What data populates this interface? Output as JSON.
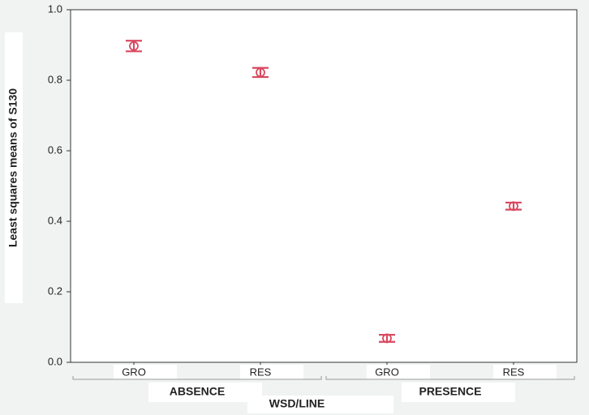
{
  "chart_data": {
    "type": "errorbar",
    "y_label": "Least squares means of S130",
    "x_label": "WSD/LINE",
    "categories": [
      "GRO",
      "RES",
      "GRO",
      "RES"
    ],
    "groups": [
      "ABSENCE",
      "PRESENCE"
    ],
    "values": [
      0.897,
      0.822,
      0.068,
      0.443
    ],
    "errors": [
      0.015,
      0.013,
      0.01,
      0.01
    ],
    "color": "#d9485f",
    "ylim": [
      0,
      1
    ],
    "yticks": [
      {
        "value": 0,
        "label": "0.0"
      },
      0.2,
      0.4,
      0.6,
      0.8,
      {
        "value": 1,
        "label": "1.0"
      }
    ]
  }
}
